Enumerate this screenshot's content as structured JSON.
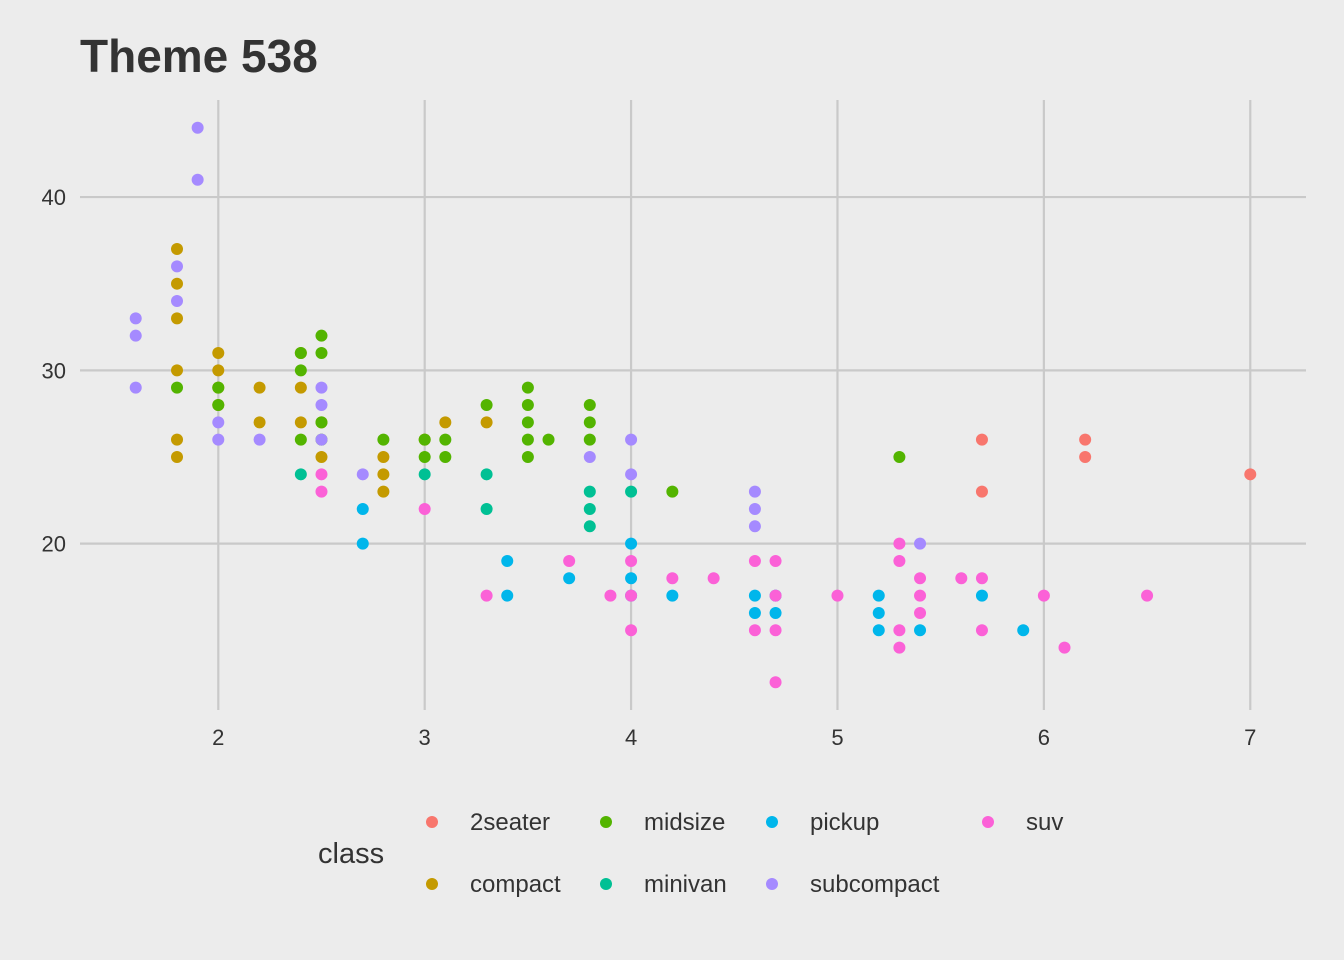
{
  "chart_data": {
    "type": "scatter",
    "title": "Theme 538",
    "xlabel": "",
    "ylabel": "",
    "xlim": [
      1.33,
      7.27
    ],
    "ylim": [
      10.4,
      45.6
    ],
    "xticks": [
      2,
      3,
      4,
      5,
      6,
      7
    ],
    "yticks": [
      20,
      30,
      40
    ],
    "grid": true,
    "legend": {
      "title": "class",
      "position": "bottom"
    },
    "series": [
      {
        "name": "2seater",
        "color": "#F8766D",
        "points": [
          [
            5.7,
            26
          ],
          [
            5.7,
            23
          ],
          [
            6.2,
            26
          ],
          [
            6.2,
            25
          ],
          [
            7.0,
            24
          ]
        ]
      },
      {
        "name": "compact",
        "color": "#C49A00",
        "points": [
          [
            1.8,
            37
          ],
          [
            1.8,
            35
          ],
          [
            1.8,
            33
          ],
          [
            1.8,
            30
          ],
          [
            1.8,
            26
          ],
          [
            1.8,
            25
          ],
          [
            2.0,
            31
          ],
          [
            2.0,
            30
          ],
          [
            2.0,
            29
          ],
          [
            2.0,
            28
          ],
          [
            2.2,
            29
          ],
          [
            2.2,
            27
          ],
          [
            2.4,
            31
          ],
          [
            2.4,
            29
          ],
          [
            2.4,
            27
          ],
          [
            2.5,
            27
          ],
          [
            2.5,
            25
          ],
          [
            2.8,
            25
          ],
          [
            2.8,
            24
          ],
          [
            2.8,
            23
          ],
          [
            3.0,
            26
          ],
          [
            3.1,
            27
          ],
          [
            3.3,
            27
          ]
        ]
      },
      {
        "name": "midsize",
        "color": "#53B400",
        "points": [
          [
            1.8,
            29
          ],
          [
            2.0,
            29
          ],
          [
            2.0,
            28
          ],
          [
            2.4,
            31
          ],
          [
            2.4,
            30
          ],
          [
            2.4,
            26
          ],
          [
            2.5,
            32
          ],
          [
            2.5,
            31
          ],
          [
            2.5,
            27
          ],
          [
            2.5,
            26
          ],
          [
            2.8,
            26
          ],
          [
            3.0,
            26
          ],
          [
            3.0,
            25
          ],
          [
            3.1,
            26
          ],
          [
            3.1,
            25
          ],
          [
            3.3,
            28
          ],
          [
            3.5,
            29
          ],
          [
            3.5,
            28
          ],
          [
            3.5,
            27
          ],
          [
            3.5,
            26
          ],
          [
            3.5,
            25
          ],
          [
            3.6,
            26
          ],
          [
            3.8,
            28
          ],
          [
            3.8,
            27
          ],
          [
            3.8,
            26
          ],
          [
            4.2,
            23
          ],
          [
            5.3,
            25
          ]
        ]
      },
      {
        "name": "minivan",
        "color": "#00C094",
        "points": [
          [
            2.4,
            24
          ],
          [
            3.0,
            24
          ],
          [
            3.3,
            24
          ],
          [
            3.3,
            22
          ],
          [
            3.8,
            23
          ],
          [
            3.8,
            22
          ],
          [
            3.8,
            21
          ],
          [
            4.0,
            23
          ]
        ]
      },
      {
        "name": "pickup",
        "color": "#00B6EB",
        "points": [
          [
            2.7,
            22
          ],
          [
            2.7,
            20
          ],
          [
            3.4,
            19
          ],
          [
            3.4,
            17
          ],
          [
            3.7,
            18
          ],
          [
            4.0,
            20
          ],
          [
            4.0,
            18
          ],
          [
            4.0,
            17
          ],
          [
            4.2,
            17
          ],
          [
            4.6,
            17
          ],
          [
            4.6,
            16
          ],
          [
            4.7,
            17
          ],
          [
            4.7,
            16
          ],
          [
            5.2,
            17
          ],
          [
            5.2,
            16
          ],
          [
            5.2,
            15
          ],
          [
            5.4,
            15
          ],
          [
            5.7,
            17
          ],
          [
            5.9,
            15
          ]
        ]
      },
      {
        "name": "subcompact",
        "color": "#A58AFF",
        "points": [
          [
            1.6,
            33
          ],
          [
            1.6,
            32
          ],
          [
            1.6,
            29
          ],
          [
            1.8,
            36
          ],
          [
            1.8,
            34
          ],
          [
            1.9,
            44
          ],
          [
            1.9,
            41
          ],
          [
            2.0,
            27
          ],
          [
            2.0,
            26
          ],
          [
            2.2,
            26
          ],
          [
            2.5,
            29
          ],
          [
            2.5,
            28
          ],
          [
            2.5,
            26
          ],
          [
            2.7,
            24
          ],
          [
            3.8,
            25
          ],
          [
            4.0,
            26
          ],
          [
            4.0,
            24
          ],
          [
            4.6,
            23
          ],
          [
            4.6,
            22
          ],
          [
            4.6,
            21
          ],
          [
            5.4,
            20
          ]
        ]
      },
      {
        "name": "suv",
        "color": "#FB61D7",
        "points": [
          [
            2.5,
            24
          ],
          [
            2.5,
            23
          ],
          [
            3.0,
            22
          ],
          [
            3.3,
            17
          ],
          [
            3.7,
            19
          ],
          [
            3.9,
            17
          ],
          [
            4.0,
            19
          ],
          [
            4.0,
            17
          ],
          [
            4.0,
            15
          ],
          [
            4.2,
            18
          ],
          [
            4.4,
            18
          ],
          [
            4.6,
            19
          ],
          [
            4.6,
            15
          ],
          [
            4.7,
            19
          ],
          [
            4.7,
            17
          ],
          [
            4.7,
            15
          ],
          [
            4.7,
            12
          ],
          [
            5.0,
            17
          ],
          [
            5.3,
            20
          ],
          [
            5.3,
            19
          ],
          [
            5.3,
            15
          ],
          [
            5.3,
            14
          ],
          [
            5.4,
            18
          ],
          [
            5.4,
            17
          ],
          [
            5.4,
            16
          ],
          [
            5.6,
            18
          ],
          [
            5.7,
            18
          ],
          [
            5.7,
            15
          ],
          [
            6.0,
            17
          ],
          [
            6.1,
            14
          ],
          [
            6.5,
            17
          ]
        ]
      }
    ]
  }
}
